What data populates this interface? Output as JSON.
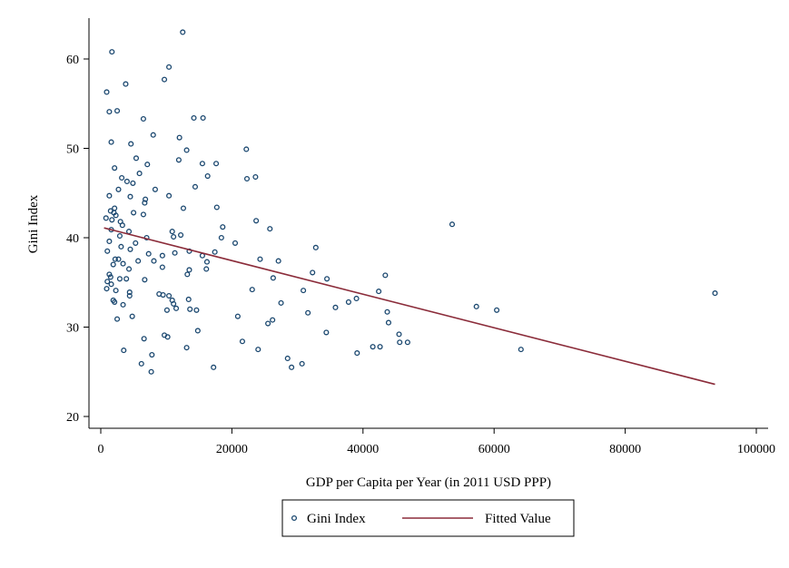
{
  "chart_data": {
    "type": "scatter",
    "xlabel": "GDP per Capita per Year (in 2011 USD PPP)",
    "ylabel": "Gini Index",
    "xlim": [
      0,
      100000
    ],
    "ylim": [
      20,
      63
    ],
    "x_ticks": [
      0,
      20000,
      40000,
      60000,
      80000,
      100000
    ],
    "y_ticks": [
      20,
      30,
      40,
      50,
      60
    ],
    "grid": false,
    "legend_position": "bottom",
    "series": [
      {
        "name": "Gini Index",
        "mark": "hollow-circle",
        "color": "#1a476f",
        "points": [
          [
            1700,
            60.8
          ],
          [
            12500,
            63
          ],
          [
            900,
            56.3
          ],
          [
            3800,
            57.2
          ],
          [
            9700,
            57.7
          ],
          [
            10400,
            59.1
          ],
          [
            1300,
            54.1
          ],
          [
            2500,
            54.2
          ],
          [
            6500,
            53.3
          ],
          [
            14200,
            53.4
          ],
          [
            15600,
            53.4
          ],
          [
            8000,
            51.5
          ],
          [
            1600,
            50.7
          ],
          [
            4600,
            50.5
          ],
          [
            12000,
            51.2
          ],
          [
            13100,
            49.8
          ],
          [
            22200,
            49.9
          ],
          [
            5400,
            48.9
          ],
          [
            2100,
            47.8
          ],
          [
            7100,
            48.2
          ],
          [
            11900,
            48.7
          ],
          [
            15500,
            48.3
          ],
          [
            17600,
            48.3
          ],
          [
            5900,
            47.2
          ],
          [
            16300,
            46.9
          ],
          [
            3200,
            46.7
          ],
          [
            4000,
            46.3
          ],
          [
            4900,
            46.1
          ],
          [
            22300,
            46.6
          ],
          [
            23600,
            46.8
          ],
          [
            14400,
            45.7
          ],
          [
            2700,
            45.4
          ],
          [
            8300,
            45.4
          ],
          [
            1300,
            44.7
          ],
          [
            4500,
            44.6
          ],
          [
            10400,
            44.7
          ],
          [
            6800,
            44.3
          ],
          [
            6700,
            43.9
          ],
          [
            17700,
            43.4
          ],
          [
            2100,
            43.3
          ],
          [
            1500,
            43
          ],
          [
            12600,
            43.3
          ],
          [
            2000,
            42.8
          ],
          [
            5000,
            42.8
          ],
          [
            2300,
            42.5
          ],
          [
            6500,
            42.6
          ],
          [
            800,
            42.2
          ],
          [
            1700,
            42
          ],
          [
            3000,
            41.8
          ],
          [
            3300,
            41.4
          ],
          [
            23700,
            41.9
          ],
          [
            18600,
            41.2
          ],
          [
            25800,
            41
          ],
          [
            53600,
            41.5
          ],
          [
            1600,
            40.9
          ],
          [
            4300,
            40.7
          ],
          [
            10900,
            40.7
          ],
          [
            11100,
            40.1
          ],
          [
            12200,
            40.3
          ],
          [
            2900,
            40.2
          ],
          [
            7000,
            40
          ],
          [
            5300,
            39.4
          ],
          [
            18400,
            40
          ],
          [
            20500,
            39.4
          ],
          [
            32800,
            38.9
          ],
          [
            1300,
            39.6
          ],
          [
            3100,
            39
          ],
          [
            4500,
            38.7
          ],
          [
            11300,
            38.3
          ],
          [
            13500,
            38.5
          ],
          [
            17400,
            38.4
          ],
          [
            1000,
            38.5
          ],
          [
            7300,
            38.2
          ],
          [
            9400,
            38
          ],
          [
            15500,
            38
          ],
          [
            24300,
            37.6
          ],
          [
            27100,
            37.4
          ],
          [
            5700,
            37.4
          ],
          [
            2200,
            37.6
          ],
          [
            2700,
            37.6
          ],
          [
            8100,
            37.4
          ],
          [
            16200,
            37.3
          ],
          [
            1900,
            37
          ],
          [
            3400,
            37.1
          ],
          [
            9400,
            36.7
          ],
          [
            13500,
            36.4
          ],
          [
            16100,
            36.5
          ],
          [
            32300,
            36.1
          ],
          [
            43400,
            35.8
          ],
          [
            4300,
            36.5
          ],
          [
            1300,
            35.9
          ],
          [
            1500,
            35.6
          ],
          [
            2900,
            35.4
          ],
          [
            3900,
            35.4
          ],
          [
            6700,
            35.3
          ],
          [
            26300,
            35.5
          ],
          [
            1000,
            35.1
          ],
          [
            1600,
            34.8
          ],
          [
            13200,
            35.9
          ],
          [
            34500,
            35.4
          ],
          [
            900,
            34.3
          ],
          [
            2300,
            34.1
          ],
          [
            4400,
            33.9
          ],
          [
            8900,
            33.7
          ],
          [
            10400,
            33.5
          ],
          [
            13400,
            33.1
          ],
          [
            23100,
            34.2
          ],
          [
            30900,
            34.1
          ],
          [
            42400,
            34
          ],
          [
            4400,
            33.5
          ],
          [
            9500,
            33.6
          ],
          [
            10900,
            33
          ],
          [
            11100,
            32.6
          ],
          [
            11500,
            32.1
          ],
          [
            1900,
            33
          ],
          [
            2100,
            32.8
          ],
          [
            3400,
            32.5
          ],
          [
            13600,
            32
          ],
          [
            14600,
            31.9
          ],
          [
            27500,
            32.7
          ],
          [
            35800,
            32.2
          ],
          [
            37800,
            32.8
          ],
          [
            39000,
            33.2
          ],
          [
            57300,
            32.3
          ],
          [
            60400,
            31.9
          ],
          [
            2500,
            30.9
          ],
          [
            4800,
            31.2
          ],
          [
            10100,
            31.9
          ],
          [
            20900,
            31.2
          ],
          [
            31600,
            31.6
          ],
          [
            43700,
            31.7
          ],
          [
            93700,
            33.8
          ],
          [
            25500,
            30.4
          ],
          [
            26200,
            30.8
          ],
          [
            43900,
            30.5
          ],
          [
            14800,
            29.6
          ],
          [
            34400,
            29.4
          ],
          [
            45500,
            29.2
          ],
          [
            9700,
            29.1
          ],
          [
            10200,
            28.9
          ],
          [
            21600,
            28.4
          ],
          [
            6600,
            28.7
          ],
          [
            41500,
            27.8
          ],
          [
            42600,
            27.8
          ],
          [
            45600,
            28.3
          ],
          [
            46800,
            28.3
          ],
          [
            3500,
            27.4
          ],
          [
            13100,
            27.7
          ],
          [
            24000,
            27.5
          ],
          [
            39100,
            27.1
          ],
          [
            64100,
            27.5
          ],
          [
            7800,
            26.9
          ],
          [
            28500,
            26.5
          ],
          [
            6200,
            25.9
          ],
          [
            17200,
            25.5
          ],
          [
            29100,
            25.5
          ],
          [
            30700,
            25.9
          ],
          [
            7700,
            25
          ]
        ]
      },
      {
        "name": "Fitted Value",
        "mark": "line",
        "color": "#8b2c3a",
        "points": [
          [
            500,
            41.1
          ],
          [
            93700,
            23.6
          ]
        ]
      }
    ]
  }
}
